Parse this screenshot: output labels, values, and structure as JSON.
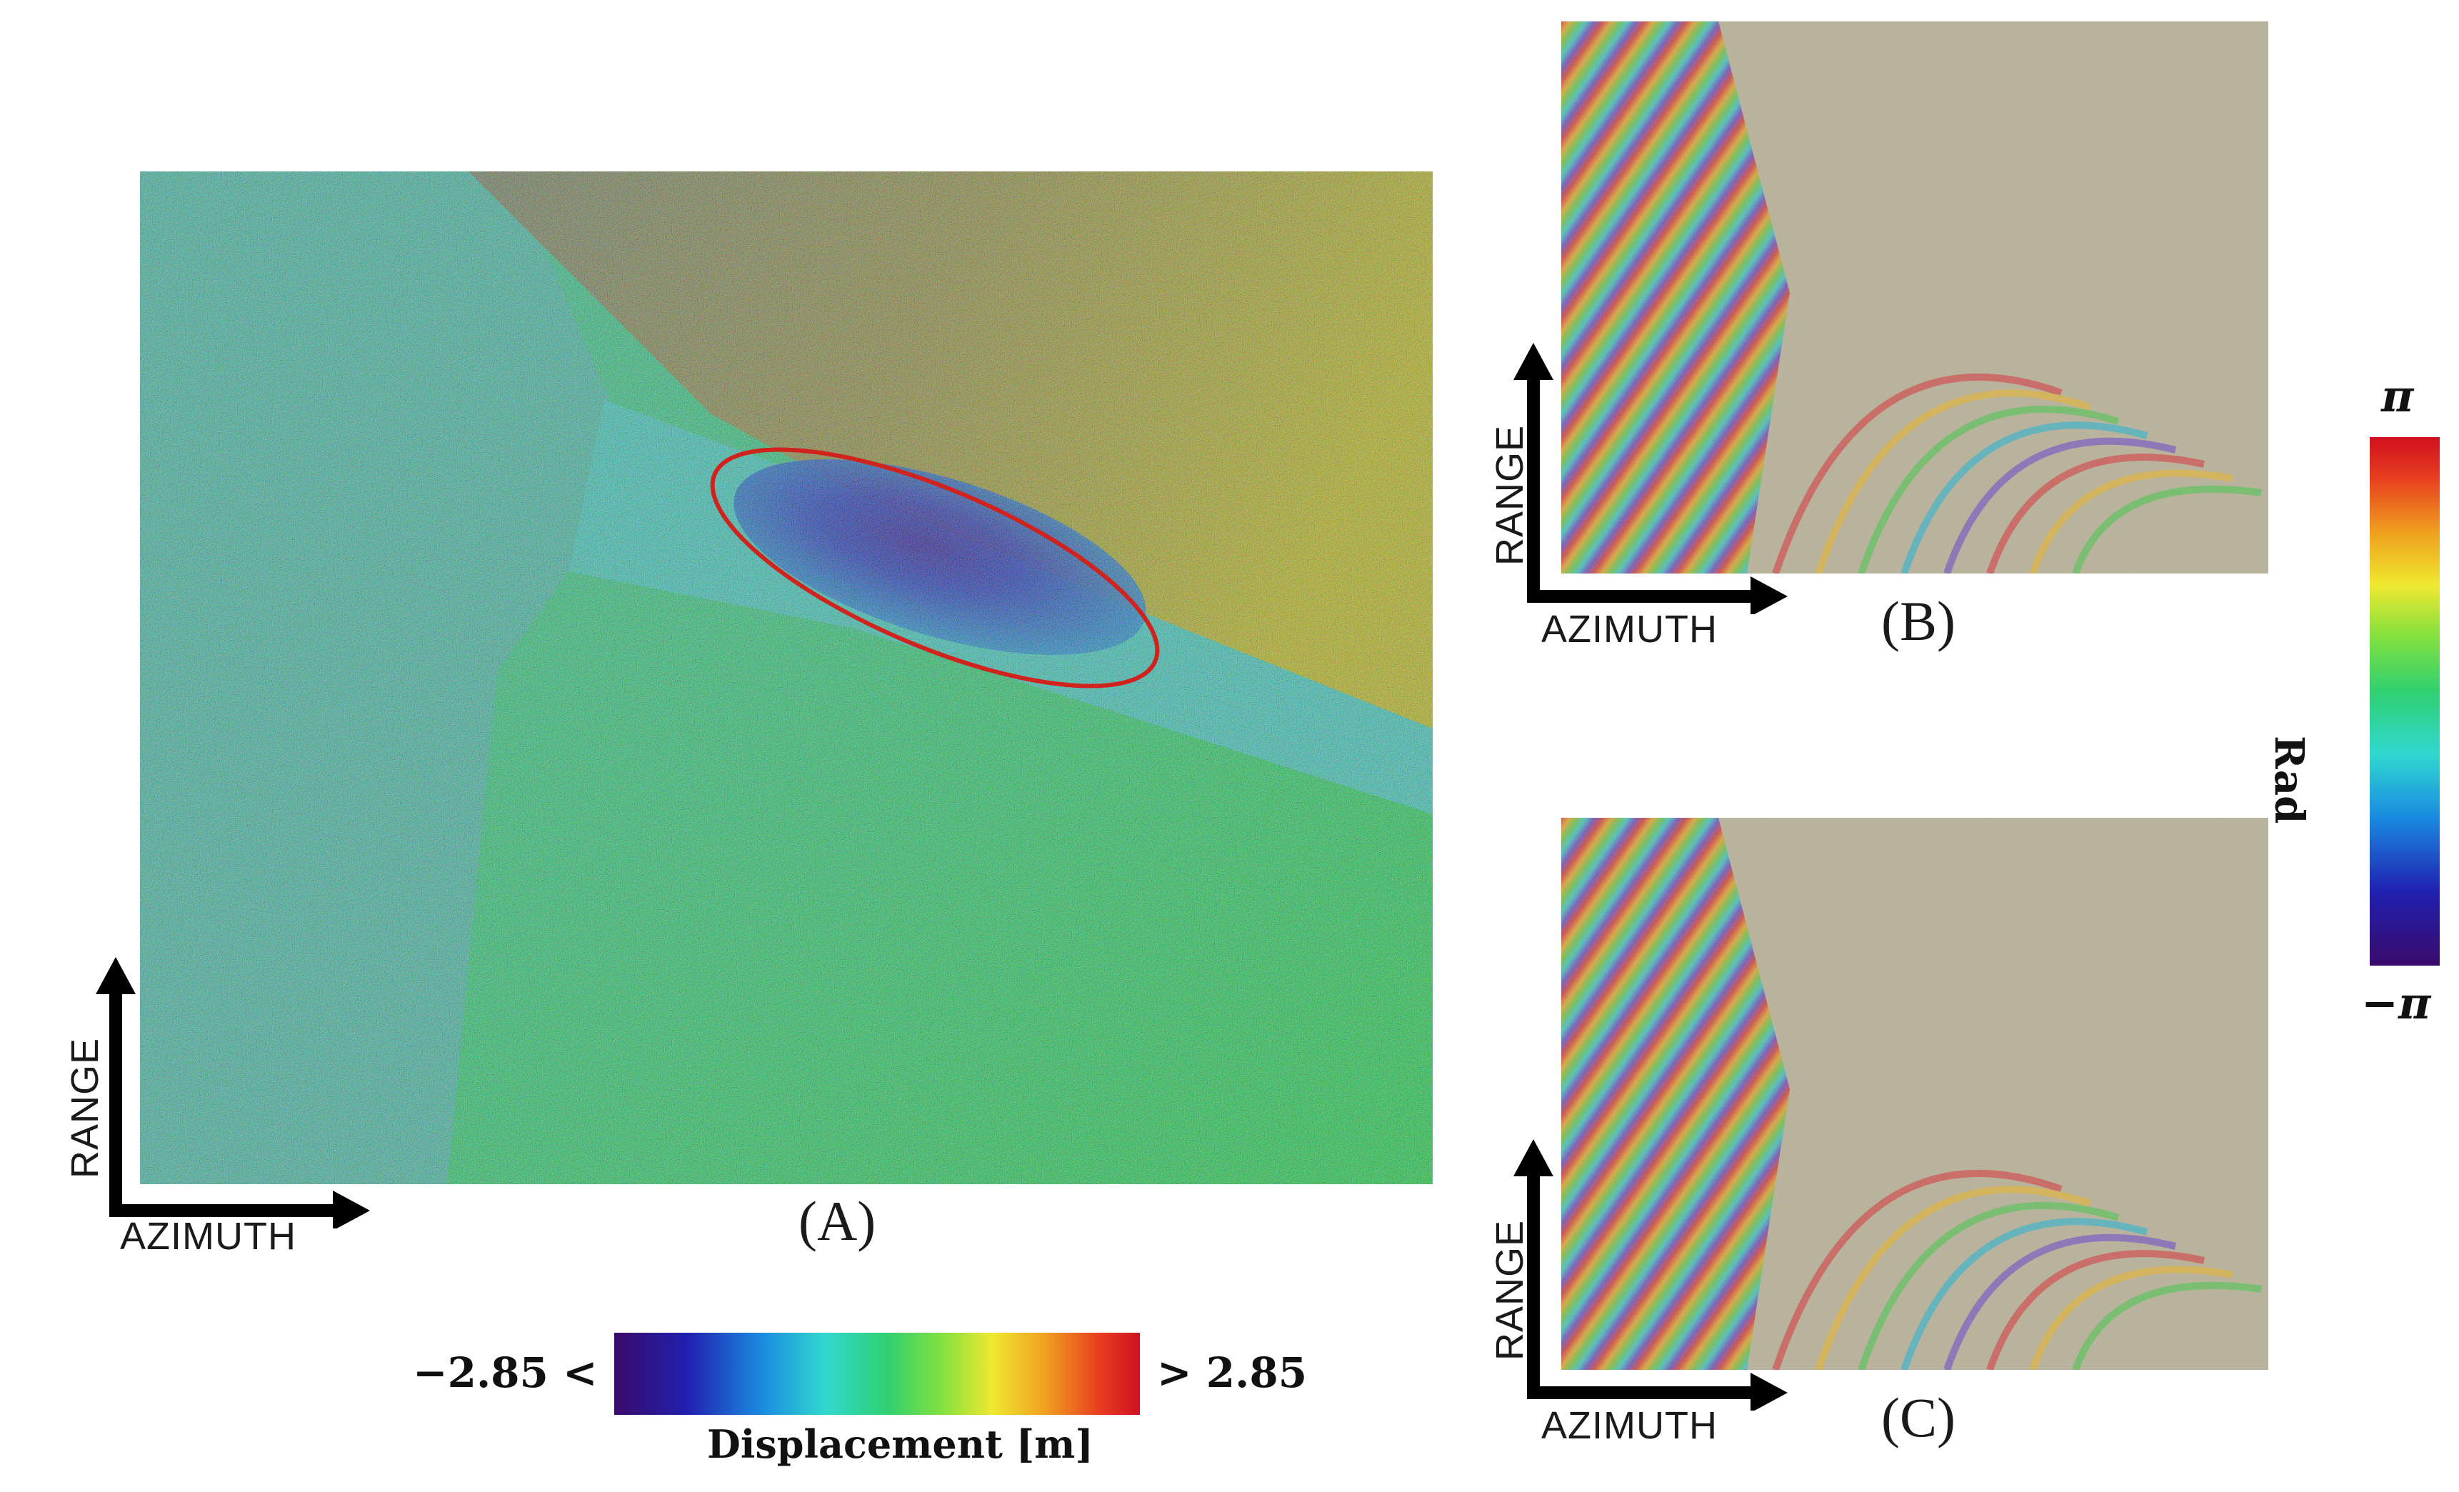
{
  "panels": [
    {
      "caption": "(A)",
      "range_label": "RANGE",
      "azimuth_label": "AZIMUTH"
    },
    {
      "caption": "(B)",
      "range_label": "RANGE",
      "azimuth_label": "AZIMUTH"
    },
    {
      "caption": "(C)",
      "range_label": "RANGE",
      "azimuth_label": "AZIMUTH"
    }
  ],
  "displacement_colorbar": {
    "min_label": "−2.85 <",
    "max_label": "> 2.85",
    "title": "Displacement [m]"
  },
  "phase_colorbar": {
    "max_label": "π",
    "min_label": "−π",
    "title": "Rad"
  },
  "annotation": {
    "ellipse_color": "#d0231e"
  }
}
